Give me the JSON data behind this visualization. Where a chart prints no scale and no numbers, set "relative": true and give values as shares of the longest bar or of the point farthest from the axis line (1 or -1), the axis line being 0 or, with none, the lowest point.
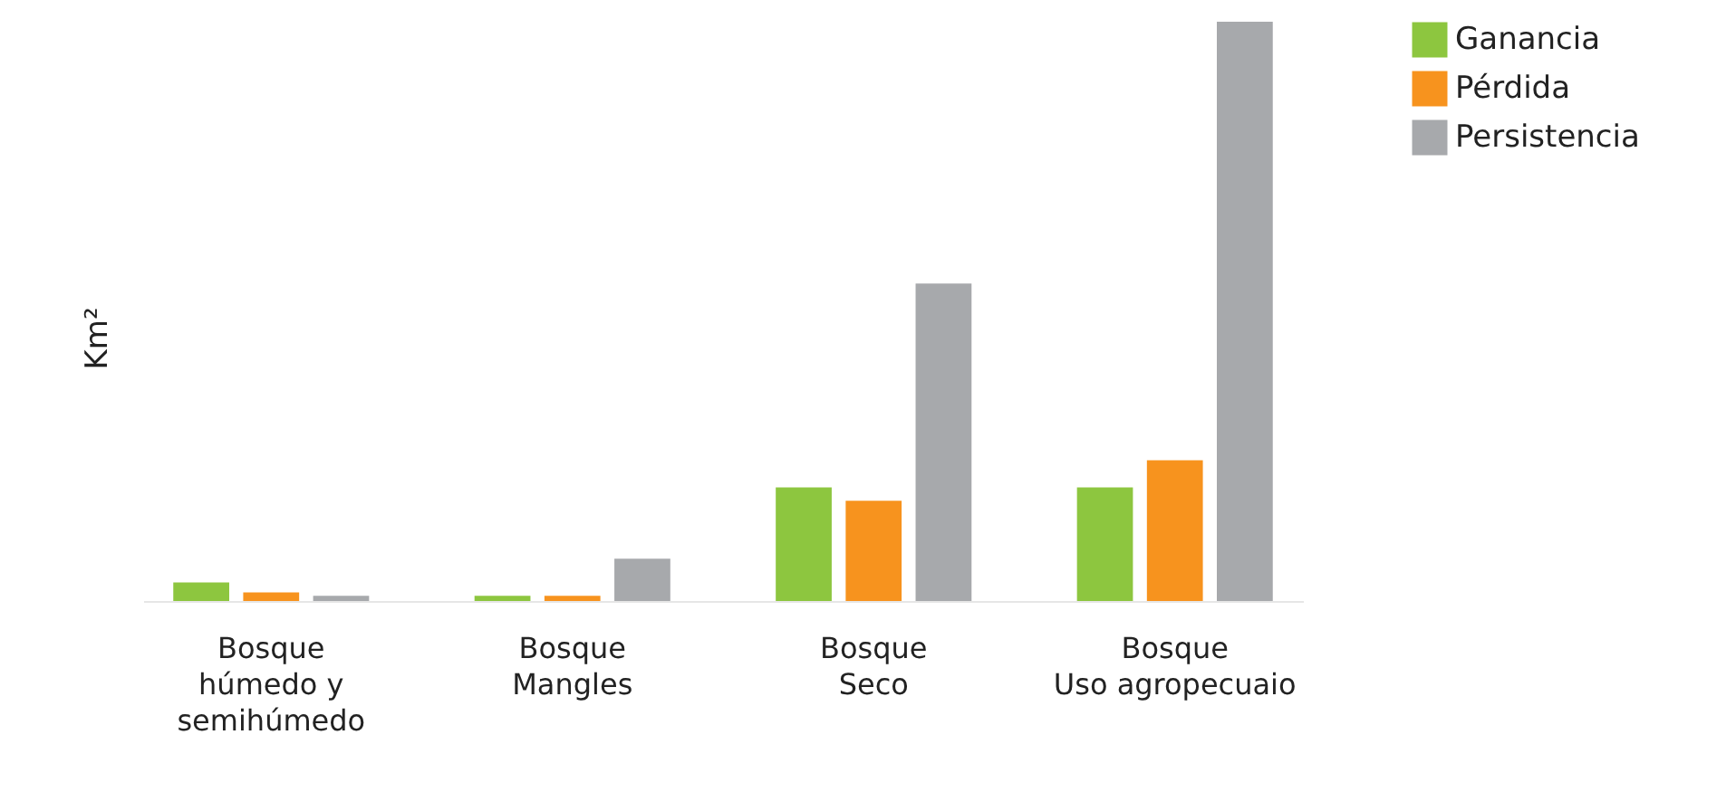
{
  "chart_data": {
    "type": "bar",
    "relative": true,
    "ylabel": "Km²",
    "legend": "right",
    "categories": [
      "Bosque\nhúmedo y\nsemihúmedo",
      "Bosque\nMangles",
      "Bosque\nSeco",
      "Bosque\nUso agropecuaio"
    ],
    "series": [
      {
        "name": "Ganancia",
        "color": "#8dc63f",
        "values": [
          0.032,
          0.009,
          0.196,
          0.196
        ]
      },
      {
        "name": "Pérdida",
        "color": "#f7931e",
        "values": [
          0.015,
          0.009,
          0.173,
          0.243
        ]
      },
      {
        "name": "Persistencia",
        "color": "#a7a9ac",
        "values": [
          0.009,
          0.073,
          0.548,
          1
        ]
      }
    ]
  }
}
